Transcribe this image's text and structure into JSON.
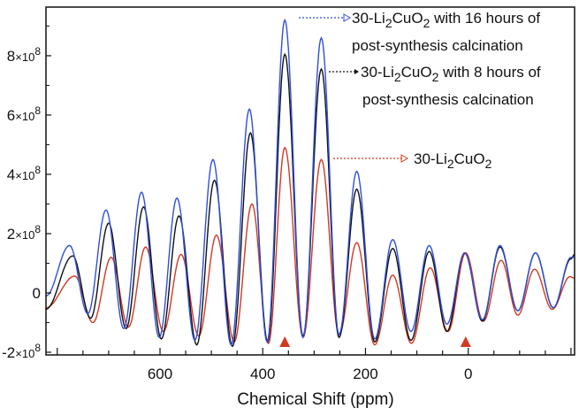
{
  "chart_data": {
    "type": "line",
    "title": "",
    "xlabel": "Chemical Shift (ppm)",
    "ylabel": "",
    "xlim": [
      822,
      -207
    ],
    "ylim": [
      -209000000.0,
      964000000.0
    ],
    "x_reversed": true,
    "grid": false,
    "x_ticks": [
      {
        "value": 600,
        "label": "600"
      },
      {
        "value": 400,
        "label": "400"
      },
      {
        "value": 200,
        "label": "200"
      },
      {
        "value": 0,
        "label": "0"
      }
    ],
    "y_ticks": [
      {
        "value": 800000000.0,
        "mant": "8",
        "exp": "8"
      },
      {
        "value": 600000000.0,
        "mant": "6",
        "exp": "8"
      },
      {
        "value": 400000000.0,
        "mant": "4",
        "exp": "8"
      },
      {
        "value": 200000000.0,
        "mant": "2",
        "exp": "8"
      },
      {
        "value": 0,
        "mant": "0",
        "exp": ""
      },
      {
        "value": -200000000.0,
        "mant": "-2",
        "exp": "8"
      }
    ],
    "markers": {
      "color": "#d03a22",
      "ppm": [
        357,
        5
      ]
    },
    "series": [
      {
        "name": "30-Li2CuO2",
        "color": "#d03a22",
        "edge_values": [
          -50000000.0,
          50000000.0
        ],
        "peaks_ppm": [
          766,
          695,
          628,
          559,
          490,
          421,
          357,
          286,
          217,
          147,
          74,
          5,
          -64,
          -129,
          -198
        ],
        "peaks": [
          57000000.0,
          120000000.0,
          155000000.0,
          130000000.0,
          195000000.0,
          300000000.0,
          490000000.0,
          450000000.0,
          170000000.0,
          60000000.0,
          85000000.0,
          135000000.0,
          110000000.0,
          80000000.0,
          55000000.0
        ],
        "troughs": [
          -100000000.0,
          -115000000.0,
          -130000000.0,
          -145000000.0,
          -165000000.0,
          -170000000.0,
          -150000000.0,
          -140000000.0,
          -175000000.0,
          -170000000.0,
          -130000000.0,
          -95000000.0,
          -75000000.0,
          -55000000.0
        ]
      },
      {
        "name": "30-Li2CuO2 with 8 hours of post-synthesis calcination",
        "color": "#111111",
        "edge_values": [
          -55000000.0,
          130000000.0
        ],
        "peaks_ppm": [
          770,
          700,
          632,
          563,
          494,
          424,
          357,
          286,
          217,
          147,
          76,
          7,
          -62,
          -131,
          -200
        ],
        "peaks": [
          125000000.0,
          235000000.0,
          290000000.0,
          260000000.0,
          380000000.0,
          540000000.0,
          805000000.0,
          755000000.0,
          350000000.0,
          150000000.0,
          140000000.0,
          135000000.0,
          155000000.0,
          135000000.0,
          115000000.0
        ],
        "troughs": [
          -85000000.0,
          -120000000.0,
          -155000000.0,
          -175000000.0,
          -180000000.0,
          -165000000.0,
          -145000000.0,
          -150000000.0,
          -165000000.0,
          -160000000.0,
          -130000000.0,
          -95000000.0,
          -60000000.0,
          -50000000.0
        ]
      },
      {
        "name": "30-Li2CuO2 with 16 hours of post-synthesis calcination",
        "color": "#2f4fd8",
        "edge_values": [
          -10000000.0,
          120000000.0
        ],
        "peaks_ppm": [
          776,
          705,
          636,
          567,
          497,
          426,
          357,
          286,
          217,
          147,
          76,
          7,
          -62,
          -131,
          -200
        ],
        "peaks": [
          160000000.0,
          280000000.0,
          340000000.0,
          320000000.0,
          450000000.0,
          620000000.0,
          920000000.0,
          860000000.0,
          410000000.0,
          180000000.0,
          160000000.0,
          135000000.0,
          160000000.0,
          135000000.0,
          120000000.0
        ],
        "troughs": [
          -70000000.0,
          -120000000.0,
          -150000000.0,
          -160000000.0,
          -175000000.0,
          -165000000.0,
          -150000000.0,
          -140000000.0,
          -155000000.0,
          -130000000.0,
          -105000000.0,
          -90000000.0,
          -60000000.0,
          -50000000.0
        ]
      }
    ],
    "annotations": [
      {
        "color": "#2f4fd8",
        "line1": [
          "30-Li",
          "2",
          "CuO",
          "2",
          " with 16 hours of"
        ],
        "line2": "post-synthesis calcination"
      },
      {
        "color": "#111111",
        "line1": [
          "30-Li",
          "2",
          "CuO",
          "2",
          " with 8 hours of"
        ],
        "line2": "post-synthesis calcination"
      },
      {
        "color": "#d03a22",
        "line1": [
          "30-Li",
          "2",
          "CuO",
          "2",
          ""
        ],
        "line2": ""
      }
    ]
  }
}
